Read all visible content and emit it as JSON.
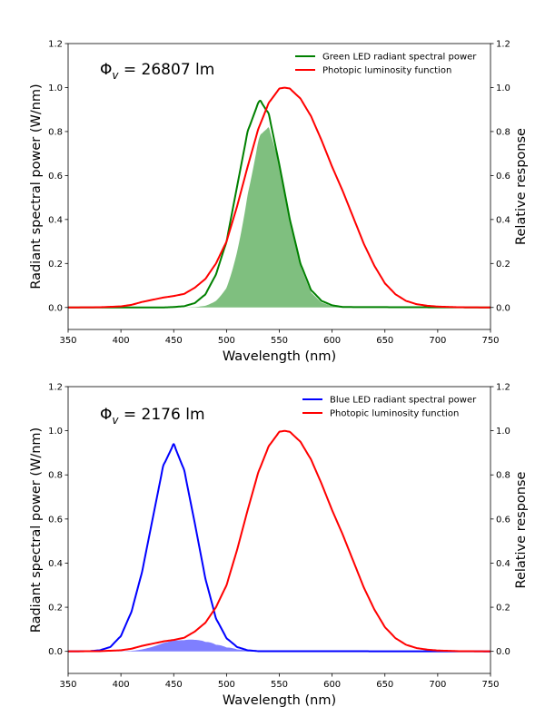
{
  "chart_data": [
    {
      "type": "line",
      "annotation": {
        "symbol": "Φ",
        "subscript": "v",
        "rest": " = 26807 lm"
      },
      "xlabel": "Wavelength (nm)",
      "ylabel": "Radiant spectral power (W/nm)",
      "ylabel_right": "Relative response",
      "xlim": [
        350,
        750
      ],
      "ylim": [
        -0.1,
        1.2
      ],
      "xticks": [
        "350",
        "400",
        "450",
        "500",
        "550",
        "600",
        "650",
        "700",
        "750"
      ],
      "yticks": [
        "0.0",
        "0.2",
        "0.4",
        "0.6",
        "0.8",
        "1.0",
        "1.2"
      ],
      "yticks_right": [
        "0.0",
        "0.2",
        "0.4",
        "0.6",
        "0.8",
        "1.0",
        "1.2"
      ],
      "legend_position": "top-right",
      "fill_product_color": "#008000",
      "series": [
        {
          "name": "Green LED radiant spectral power",
          "color": "#008000",
          "x": [
            350,
            440,
            450,
            460,
            470,
            480,
            490,
            500,
            510,
            520,
            530,
            532,
            540,
            550,
            560,
            570,
            580,
            590,
            600,
            610,
            750
          ],
          "y": [
            0,
            0,
            0.002,
            0.006,
            0.02,
            0.06,
            0.15,
            0.3,
            0.55,
            0.8,
            0.93,
            0.94,
            0.88,
            0.65,
            0.4,
            0.2,
            0.08,
            0.03,
            0.01,
            0.002,
            0
          ]
        },
        {
          "name": "Photopic luminosity function",
          "color": "#ff0000",
          "x": [
            350,
            380,
            400,
            410,
            420,
            430,
            440,
            450,
            460,
            470,
            480,
            490,
            500,
            510,
            520,
            530,
            540,
            550,
            555,
            560,
            570,
            580,
            590,
            600,
            610,
            620,
            630,
            640,
            650,
            660,
            670,
            680,
            690,
            700,
            720,
            750
          ],
          "y": [
            0,
            0.001,
            0.005,
            0.012,
            0.025,
            0.035,
            0.045,
            0.052,
            0.062,
            0.09,
            0.13,
            0.2,
            0.3,
            0.46,
            0.64,
            0.81,
            0.93,
            0.995,
            1.0,
            0.995,
            0.95,
            0.87,
            0.76,
            0.64,
            0.53,
            0.41,
            0.29,
            0.19,
            0.11,
            0.06,
            0.03,
            0.015,
            0.008,
            0.004,
            0.001,
            0
          ]
        }
      ]
    },
    {
      "type": "line",
      "annotation": {
        "symbol": "Φ",
        "subscript": "v",
        "rest": " = 2176 lm"
      },
      "xlabel": "Wavelength (nm)",
      "ylabel": "Radiant spectral power (W/nm)",
      "ylabel_right": "Relative response",
      "xlim": [
        350,
        750
      ],
      "ylim": [
        -0.1,
        1.2
      ],
      "xticks": [
        "350",
        "400",
        "450",
        "500",
        "550",
        "600",
        "650",
        "700",
        "750"
      ],
      "yticks": [
        "0.0",
        "0.2",
        "0.4",
        "0.6",
        "0.8",
        "1.0",
        "1.2"
      ],
      "yticks_right": [
        "0.0",
        "0.2",
        "0.4",
        "0.6",
        "0.8",
        "1.0",
        "1.2"
      ],
      "legend_position": "top-right",
      "fill_product_color": "#0000ff",
      "series": [
        {
          "name": "Blue LED radiant spectral power",
          "color": "#0000ff",
          "x": [
            350,
            370,
            380,
            390,
            400,
            410,
            420,
            430,
            440,
            450,
            460,
            470,
            480,
            490,
            500,
            510,
            520,
            530,
            750
          ],
          "y": [
            0,
            0.001,
            0.005,
            0.02,
            0.07,
            0.18,
            0.36,
            0.6,
            0.84,
            0.94,
            0.82,
            0.58,
            0.33,
            0.15,
            0.06,
            0.02,
            0.005,
            0.001,
            0
          ]
        },
        {
          "name": "Photopic luminosity function",
          "color": "#ff0000",
          "x": [
            350,
            380,
            400,
            410,
            420,
            430,
            440,
            450,
            460,
            470,
            480,
            490,
            500,
            510,
            520,
            530,
            540,
            550,
            555,
            560,
            570,
            580,
            590,
            600,
            610,
            620,
            630,
            640,
            650,
            660,
            670,
            680,
            690,
            700,
            720,
            750
          ],
          "y": [
            0,
            0.001,
            0.005,
            0.012,
            0.025,
            0.035,
            0.045,
            0.052,
            0.062,
            0.09,
            0.13,
            0.2,
            0.3,
            0.46,
            0.64,
            0.81,
            0.93,
            0.995,
            1.0,
            0.995,
            0.95,
            0.87,
            0.76,
            0.64,
            0.53,
            0.41,
            0.29,
            0.19,
            0.11,
            0.06,
            0.03,
            0.015,
            0.008,
            0.004,
            0.001,
            0
          ]
        }
      ]
    }
  ]
}
